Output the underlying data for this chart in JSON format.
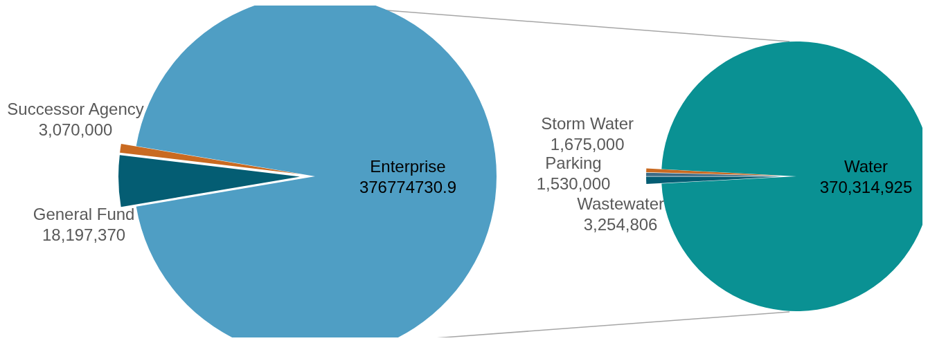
{
  "chart_data": [
    {
      "type": "pie",
      "categories": [
        "General Fund",
        "Successor Agency",
        "Enterprise"
      ],
      "values": [
        18197370,
        3070000,
        376774730.9
      ],
      "colors": [
        "#045d73",
        "#c96a21",
        "#4f9ec4"
      ],
      "value_labels": [
        "18,197,370",
        "3,070,000",
        "376774730.9"
      ]
    },
    {
      "type": "pie",
      "categories": [
        "Wastewater",
        "Parking",
        "Storm Water",
        "Water"
      ],
      "values": [
        3254806,
        1530000,
        1675000,
        370314925
      ],
      "colors": [
        "#045d73",
        "#3e6b85",
        "#c96a21",
        "#0a9193"
      ],
      "value_labels": [
        "3,254,806",
        "1,530,000",
        "1,675,000",
        "370,314,925"
      ]
    }
  ]
}
